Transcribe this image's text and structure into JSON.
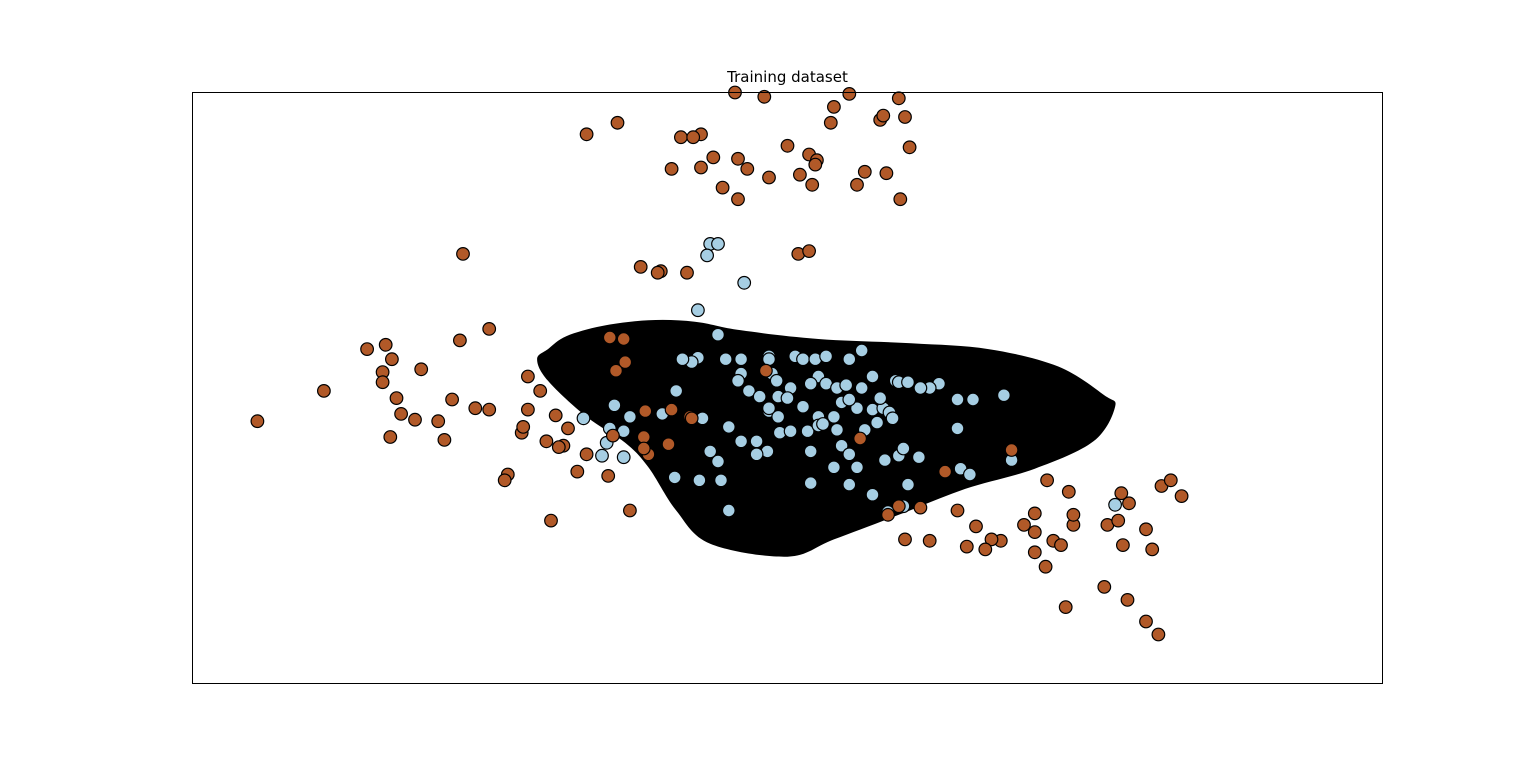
{
  "chart_data": {
    "type": "scatter",
    "title": "Training dataset",
    "xlabel": "",
    "ylabel": "",
    "xlim": [
      -3.85,
      3.85
    ],
    "ylim": [
      -2.05,
      2.05
    ],
    "grid": false,
    "ticks_visible": false,
    "legend": "none",
    "colors": {
      "class_0": "#a6cee3",
      "class_1": "#b15928",
      "decision_region": "#000000",
      "marker_edge": "#000000",
      "frame": "#000000"
    },
    "decision_region": {
      "label_class": 0,
      "boundary": [
        [
          -1.55,
          0.27
        ],
        [
          -1.43,
          0.36
        ],
        [
          -1.2,
          0.43
        ],
        [
          -0.9,
          0.47
        ],
        [
          -0.6,
          0.46
        ],
        [
          -0.3,
          0.4
        ],
        [
          0.2,
          0.34
        ],
        [
          0.8,
          0.31
        ],
        [
          1.3,
          0.27
        ],
        [
          1.75,
          0.15
        ],
        [
          2.05,
          -0.05
        ],
        [
          2.12,
          -0.13
        ],
        [
          1.98,
          -0.37
        ],
        [
          1.6,
          -0.56
        ],
        [
          1.15,
          -0.7
        ],
        [
          0.72,
          -0.88
        ],
        [
          0.3,
          -1.05
        ],
        [
          0.0,
          -1.17
        ],
        [
          -0.5,
          -1.08
        ],
        [
          -0.72,
          -0.85
        ],
        [
          -0.9,
          -0.55
        ],
        [
          -1.05,
          -0.38
        ],
        [
          -1.3,
          -0.2
        ],
        [
          -1.55,
          0.05
        ],
        [
          -1.62,
          0.2
        ]
      ]
    },
    "series": [
      {
        "class": 0,
        "points": [
          [
            -0.5,
            1.0
          ],
          [
            -0.52,
            0.92
          ],
          [
            -0.28,
            0.73
          ],
          [
            -0.58,
            0.54
          ],
          [
            -0.45,
            0.37
          ],
          [
            -0.58,
            0.21
          ],
          [
            -0.62,
            0.18
          ],
          [
            -0.68,
            0.2
          ],
          [
            -0.4,
            0.2
          ],
          [
            -0.3,
            0.2
          ],
          [
            -0.3,
            0.1
          ],
          [
            -0.32,
            0.05
          ],
          [
            -0.12,
            0.22
          ],
          [
            -0.12,
            0.2
          ],
          [
            -0.1,
            0.1
          ],
          [
            -0.07,
            0.05
          ],
          [
            0.05,
            0.22
          ],
          [
            0.1,
            0.2
          ],
          [
            0.18,
            0.2
          ],
          [
            0.25,
            0.22
          ],
          [
            0.4,
            0.2
          ],
          [
            0.48,
            0.26
          ],
          [
            0.2,
            0.08
          ],
          [
            0.02,
            0.0
          ],
          [
            0.15,
            0.03
          ],
          [
            0.25,
            0.03
          ],
          [
            0.32,
            0.0
          ],
          [
            0.38,
            0.02
          ],
          [
            0.48,
            0.0
          ],
          [
            0.55,
            0.08
          ],
          [
            0.7,
            0.05
          ],
          [
            0.72,
            0.04
          ],
          [
            0.78,
            0.04
          ],
          [
            0.98,
            0.03
          ],
          [
            0.92,
            0.0
          ],
          [
            0.86,
            0.0
          ],
          [
            -0.72,
            -0.02
          ],
          [
            -0.25,
            -0.02
          ],
          [
            -0.18,
            -0.06
          ],
          [
            -0.06,
            -0.06
          ],
          [
            0.0,
            -0.07
          ],
          [
            0.1,
            -0.13
          ],
          [
            -0.12,
            -0.16
          ],
          [
            -0.06,
            -0.2
          ],
          [
            0.2,
            -0.2
          ],
          [
            0.3,
            -0.2
          ],
          [
            0.45,
            -0.14
          ],
          [
            0.55,
            -0.15
          ],
          [
            0.62,
            -0.14
          ],
          [
            0.66,
            -0.17
          ],
          [
            0.68,
            -0.21
          ],
          [
            -0.05,
            -0.31
          ],
          [
            0.02,
            -0.3
          ],
          [
            0.13,
            -0.3
          ],
          [
            0.2,
            -0.26
          ],
          [
            0.23,
            -0.25
          ],
          [
            0.32,
            -0.29
          ],
          [
            0.5,
            -0.29
          ],
          [
            0.58,
            -0.24
          ],
          [
            -0.38,
            -0.27
          ],
          [
            -0.3,
            -0.37
          ],
          [
            -0.2,
            -0.37
          ],
          [
            -0.13,
            -0.44
          ],
          [
            -0.2,
            -0.46
          ],
          [
            -0.45,
            -0.51
          ],
          [
            -0.5,
            -0.44
          ],
          [
            -0.43,
            -0.64
          ],
          [
            0.15,
            -0.44
          ],
          [
            0.35,
            -0.4
          ],
          [
            0.4,
            -0.46
          ],
          [
            0.45,
            -0.55
          ],
          [
            0.63,
            -0.5
          ],
          [
            0.72,
            -0.47
          ],
          [
            0.75,
            -0.42
          ],
          [
            0.85,
            -0.48
          ],
          [
            -0.38,
            -0.85
          ],
          [
            0.55,
            -0.74
          ],
          [
            0.65,
            -0.86
          ],
          [
            0.75,
            -0.82
          ],
          [
            0.15,
            -0.66
          ],
          [
            0.3,
            -0.55
          ],
          [
            0.4,
            -0.67
          ],
          [
            0.78,
            -0.67
          ],
          [
            -0.57,
            -0.64
          ],
          [
            -0.73,
            -0.62
          ],
          [
            -1.06,
            -0.48
          ],
          [
            -1.17,
            -0.38
          ],
          [
            -1.2,
            -0.47
          ],
          [
            -1.06,
            -0.3
          ],
          [
            -1.02,
            -0.2
          ],
          [
            -1.15,
            -0.28
          ],
          [
            -1.32,
            -0.21
          ],
          [
            -1.12,
            -0.12
          ],
          [
            -0.81,
            -0.18
          ],
          [
            -0.55,
            -0.21
          ],
          [
            -0.12,
            -0.14
          ],
          [
            0.35,
            -0.1
          ],
          [
            0.4,
            -0.08
          ],
          [
            0.6,
            -0.07
          ],
          [
            1.1,
            -0.28
          ],
          [
            1.1,
            -0.08
          ],
          [
            1.2,
            -0.08
          ],
          [
            1.4,
            -0.05
          ],
          [
            1.12,
            -0.56
          ],
          [
            1.18,
            -0.6
          ],
          [
            2.12,
            -0.81
          ],
          [
            1.45,
            -0.5
          ],
          [
            -0.45,
            1.0
          ]
        ]
      },
      {
        "class": 1,
        "points": [
          [
            -0.34,
            2.05
          ],
          [
            -0.15,
            2.02
          ],
          [
            0.4,
            2.04
          ],
          [
            0.72,
            2.01
          ],
          [
            0.28,
            1.84
          ],
          [
            0.6,
            1.86
          ],
          [
            0.62,
            1.89
          ],
          [
            0.3,
            1.95
          ],
          [
            0.76,
            1.88
          ],
          [
            -1.1,
            1.84
          ],
          [
            -1.3,
            1.76
          ],
          [
            -0.69,
            1.74
          ],
          [
            -0.56,
            1.76
          ],
          [
            -0.61,
            1.74
          ],
          [
            -0.0,
            1.68
          ],
          [
            0.14,
            1.62
          ],
          [
            0.19,
            1.58
          ],
          [
            0.18,
            1.55
          ],
          [
            0.08,
            1.48
          ],
          [
            0.79,
            1.67
          ],
          [
            -0.48,
            1.6
          ],
          [
            -0.32,
            1.59
          ],
          [
            -0.56,
            1.53
          ],
          [
            -0.75,
            1.52
          ],
          [
            -0.26,
            1.52
          ],
          [
            -0.42,
            1.39
          ],
          [
            0.5,
            1.5
          ],
          [
            0.64,
            1.49
          ],
          [
            0.45,
            1.41
          ],
          [
            -0.12,
            1.46
          ],
          [
            -0.32,
            1.31
          ],
          [
            0.16,
            1.41
          ],
          [
            0.73,
            1.31
          ],
          [
            -2.1,
            0.93
          ],
          [
            0.07,
            0.93
          ],
          [
            0.14,
            0.95
          ],
          [
            -3.43,
            -0.23
          ],
          [
            -3.0,
            -0.02
          ],
          [
            -2.37,
            0.13
          ],
          [
            -2.5,
            -0.18
          ],
          [
            -2.62,
            0.11
          ],
          [
            -2.72,
            0.27
          ],
          [
            -2.6,
            0.3
          ],
          [
            -2.56,
            0.2
          ],
          [
            -2.62,
            0.04
          ],
          [
            -2.53,
            -0.07
          ],
          [
            -2.57,
            -0.34
          ],
          [
            -2.22,
            -0.36
          ],
          [
            -2.26,
            -0.23
          ],
          [
            -2.41,
            -0.22
          ],
          [
            -2.02,
            -0.14
          ],
          [
            -1.93,
            -0.15
          ],
          [
            -2.17,
            -0.08
          ],
          [
            -2.12,
            0.33
          ],
          [
            -1.93,
            0.41
          ],
          [
            -1.68,
            0.08
          ],
          [
            -1.6,
            -0.02
          ],
          [
            -1.72,
            -0.31
          ],
          [
            -1.5,
            -0.19
          ],
          [
            -1.45,
            -0.4
          ],
          [
            -1.42,
            -0.28
          ],
          [
            -1.71,
            -0.27
          ],
          [
            -1.68,
            -0.15
          ],
          [
            -1.81,
            -0.6
          ],
          [
            -1.83,
            -0.64
          ],
          [
            -1.36,
            -0.58
          ],
          [
            -1.3,
            -0.46
          ],
          [
            -1.16,
            -0.61
          ],
          [
            -1.02,
            -0.85
          ],
          [
            -1.53,
            -0.92
          ],
          [
            -1.48,
            -0.41
          ],
          [
            -1.56,
            -0.37
          ],
          [
            -1.11,
            0.12
          ],
          [
            -1.06,
            0.34
          ],
          [
            -1.15,
            0.35
          ],
          [
            -1.05,
            0.18
          ],
          [
            -0.75,
            -0.15
          ],
          [
            -0.63,
            -0.2
          ],
          [
            -0.14,
            0.12
          ],
          [
            -0.62,
            -0.21
          ],
          [
            -0.92,
            -0.16
          ],
          [
            -1.13,
            -0.33
          ],
          [
            -0.93,
            -0.34
          ],
          [
            -0.77,
            -0.39
          ],
          [
            -0.9,
            -0.46
          ],
          [
            -0.93,
            -0.42
          ],
          [
            0.47,
            -0.35
          ],
          [
            0.65,
            -0.88
          ],
          [
            0.86,
            -0.83
          ],
          [
            1.02,
            -0.58
          ],
          [
            1.45,
            -0.43
          ],
          [
            1.68,
            -0.64
          ],
          [
            1.82,
            -0.72
          ],
          [
            1.6,
            -0.87
          ],
          [
            1.53,
            -0.95
          ],
          [
            1.6,
            -1.0
          ],
          [
            1.72,
            -1.06
          ],
          [
            1.77,
            -1.09
          ],
          [
            1.85,
            -0.95
          ],
          [
            1.85,
            -0.88
          ],
          [
            2.07,
            -0.95
          ],
          [
            2.14,
            -0.92
          ],
          [
            2.17,
            -1.09
          ],
          [
            2.36,
            -1.12
          ],
          [
            2.05,
            -1.38
          ],
          [
            1.8,
            -1.52
          ],
          [
            2.2,
            -1.47
          ],
          [
            2.32,
            -1.62
          ],
          [
            2.4,
            -1.71
          ],
          [
            2.16,
            -0.73
          ],
          [
            2.21,
            -0.8
          ],
          [
            2.32,
            -0.98
          ],
          [
            2.42,
            -0.68
          ],
          [
            2.48,
            -0.64
          ],
          [
            2.55,
            -0.75
          ],
          [
            1.67,
            -1.24
          ],
          [
            1.6,
            -1.14
          ],
          [
            1.38,
            -1.06
          ],
          [
            1.32,
            -1.05
          ],
          [
            1.16,
            -1.1
          ],
          [
            1.28,
            -1.12
          ],
          [
            1.1,
            -0.85
          ],
          [
            1.22,
            -0.96
          ],
          [
            0.76,
            -1.05
          ],
          [
            0.92,
            -1.06
          ],
          [
            0.72,
            -0.82
          ],
          [
            -0.95,
            0.84
          ],
          [
            -0.82,
            0.81
          ],
          [
            -0.84,
            0.8
          ],
          [
            -0.65,
            0.8
          ]
        ]
      }
    ]
  }
}
